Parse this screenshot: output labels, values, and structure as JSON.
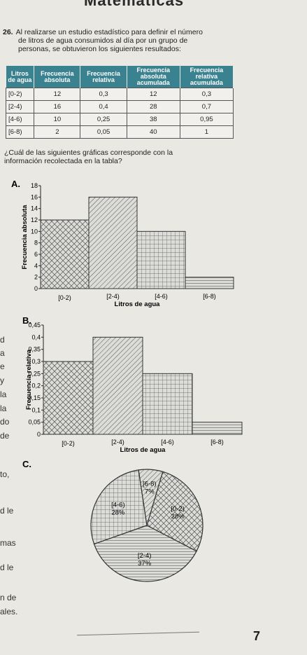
{
  "header": {
    "subject_partial": "Matemáticas"
  },
  "question": {
    "number": "26.",
    "line1": "Al realizarse un estudio estadístico para definir el número",
    "line2": "de litros de agua consumidos al día por un grupo de",
    "line3": "personas, se obtuvieron los siguientes resultados:"
  },
  "table": {
    "headers": [
      "Litros de agua",
      "Frecuencia absoluta",
      "Frecuencia relativa",
      "Frecuencia absoluta acumulada",
      "Frecuencia relativa acumulada"
    ],
    "rows": [
      [
        "[0-2)",
        "12",
        "0,3",
        "12",
        "0,3"
      ],
      [
        "[2-4)",
        "16",
        "0,4",
        "28",
        "0,7"
      ],
      [
        "[4-6)",
        "10",
        "0,25",
        "38",
        "0,95"
      ],
      [
        "[6-8)",
        "2",
        "0,05",
        "40",
        "1"
      ]
    ]
  },
  "subquestion": {
    "line1": "¿Cuál de las siguientes gráficas corresponde con la",
    "line2": "información recolectada en la tabla?"
  },
  "left_fragments": [
    "d",
    "a",
    "e",
    "y",
    "la",
    "la",
    "do",
    "de",
    "to,",
    "d le",
    "mas",
    "d le",
    "n de",
    "ales."
  ],
  "page_number": "7",
  "colors": {
    "header_teal": "#3a8290",
    "bar_fill": "#d9d9d6"
  },
  "chart_data": [
    {
      "type": "bar",
      "option_label": "A.",
      "categories": [
        "[0-2)",
        "[2-4)",
        "[4-6)",
        "[6-8)"
      ],
      "values": [
        12,
        16,
        10,
        2
      ],
      "xlabel": "Litros de agua",
      "ylabel": "Frecuencia absoluta",
      "yticks": [
        "0",
        "2",
        "4",
        "6",
        "8",
        "10",
        "12",
        "14",
        "16",
        "18"
      ],
      "ylim": [
        0,
        18
      ]
    },
    {
      "type": "bar",
      "option_label": "B.",
      "categories": [
        "[0-2)",
        "[2-4)",
        "[4-6)",
        "[6-8)"
      ],
      "values": [
        0.3,
        0.4,
        0.25,
        0.05
      ],
      "xlabel": "Litros de agua",
      "ylabel": "Frecuencia relativa",
      "yticks": [
        "0",
        "0,05",
        "0,1",
        "0,15",
        "0,2",
        "0,25",
        "0,3",
        "0,35",
        "0,4",
        "0,45"
      ],
      "ylim": [
        0,
        0.45
      ]
    },
    {
      "type": "pie",
      "option_label": "C.",
      "slices": [
        {
          "label": "[0-2)",
          "pct_label": "28%",
          "value": 28
        },
        {
          "label": "[2-4)",
          "pct_label": "37%",
          "value": 37
        },
        {
          "label": "[4-6)",
          "pct_label": "28%",
          "value": 28
        },
        {
          "label": "[6-8)",
          "pct_label": "7%",
          "value": 7
        }
      ]
    }
  ]
}
